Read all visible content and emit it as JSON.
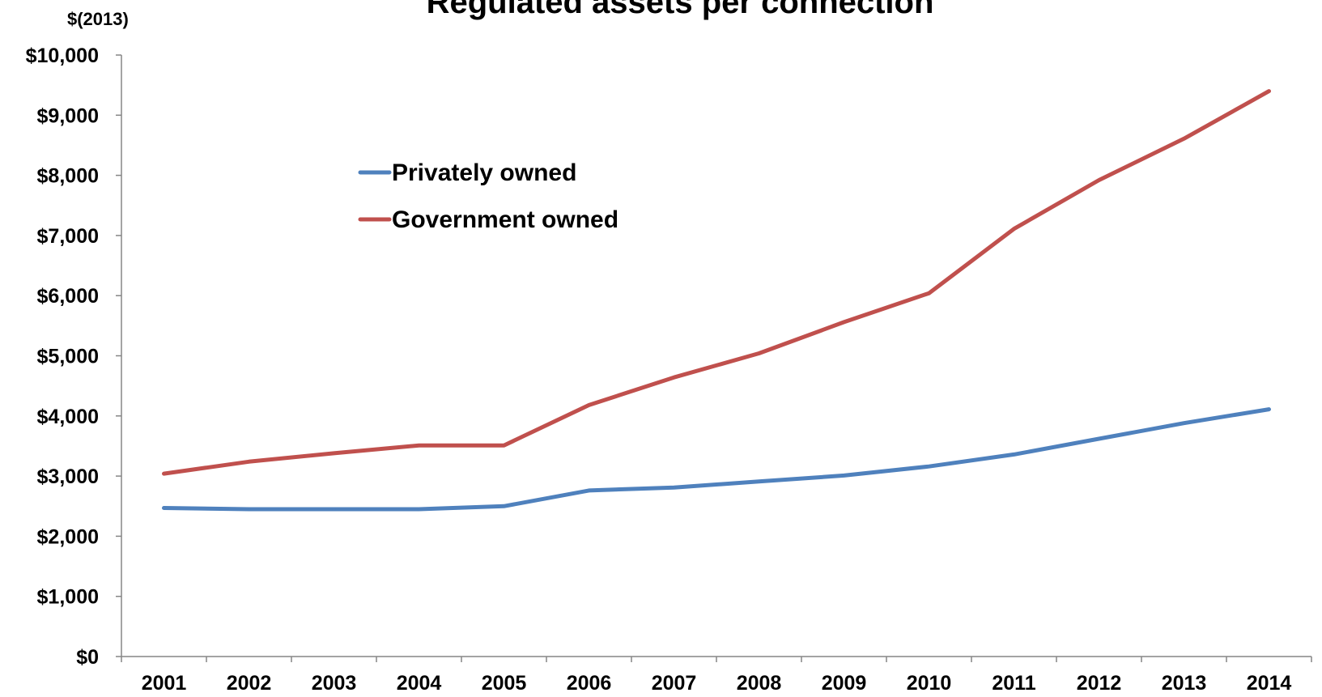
{
  "chart_data": {
    "type": "line",
    "title": "Regulated assets per connection",
    "ylabel": "$(2013)",
    "xlabel": "",
    "categories": [
      "2001",
      "2002",
      "2003",
      "2004",
      "2005",
      "2006",
      "2007",
      "2008",
      "2009",
      "2010",
      "2011",
      "2012",
      "2013",
      "2014"
    ],
    "ylim": [
      0,
      10000
    ],
    "yticks": [
      0,
      1000,
      2000,
      3000,
      4000,
      5000,
      6000,
      7000,
      8000,
      9000,
      10000
    ],
    "ytick_labels": [
      "$0",
      "$1,000",
      "$2,000",
      "$3,000",
      "$4,000",
      "$5,000",
      "$6,000",
      "$7,000",
      "$8,000",
      "$9,000",
      "$10,000"
    ],
    "grid": false,
    "legend_position": "upper-left-inside",
    "series": [
      {
        "name": "Privately owned",
        "color": "#4f81bd",
        "values": [
          2470,
          2450,
          2450,
          2450,
          2500,
          2760,
          2810,
          2910,
          3010,
          3160,
          3360,
          3620,
          3880,
          4110
        ]
      },
      {
        "name": "Government owned",
        "color": "#c0504d",
        "values": [
          3040,
          3240,
          3380,
          3510,
          3510,
          4180,
          4640,
          5040,
          5560,
          6040,
          7110,
          7920,
          8610,
          9400
        ]
      }
    ]
  }
}
